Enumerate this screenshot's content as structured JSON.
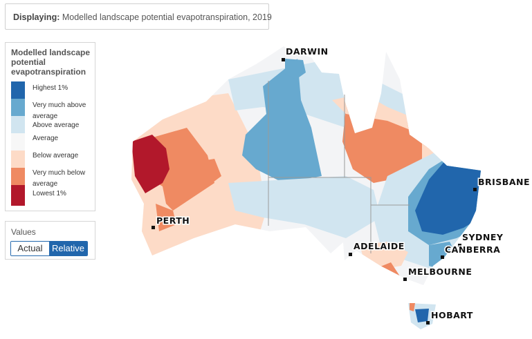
{
  "header": {
    "prefix": "Displaying:",
    "text": "Modelled landscape potential evapotranspiration, 2019"
  },
  "legend": {
    "title": "Modelled landscape potential evapotranspiration",
    "items": [
      {
        "label": "Highest 1%",
        "color": "#2166ac"
      },
      {
        "label": "Very much above average",
        "color": "#67a9cf"
      },
      {
        "label": "Above average",
        "color": "#d1e5f0"
      },
      {
        "label": "Average",
        "color": "#f7f7f7"
      },
      {
        "label": "Below average",
        "color": "#fddbc7"
      },
      {
        "label": "Very much below average",
        "color": "#ef8a62"
      },
      {
        "label": "Lowest 1%",
        "color": "#b2182b"
      }
    ]
  },
  "values": {
    "title": "Values",
    "options": [
      "Actual",
      "Relative"
    ],
    "selected": "Relative"
  },
  "map": {
    "cities": [
      "DARWIN",
      "BRISBANE",
      "PERTH",
      "SYDNEY",
      "CANBERRA",
      "ADELAIDE",
      "MELBOURNE",
      "HOBART"
    ]
  }
}
